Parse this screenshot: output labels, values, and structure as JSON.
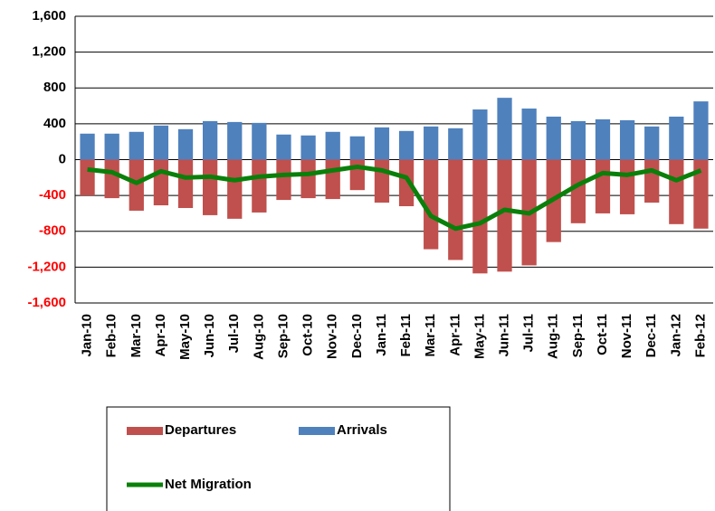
{
  "chart_data": {
    "type": "bar",
    "categories": [
      "Jan-10",
      "Feb-10",
      "Mar-10",
      "Apr-10",
      "May-10",
      "Jun-10",
      "Jul-10",
      "Aug-10",
      "Sep-10",
      "Oct-10",
      "Nov-10",
      "Dec-10",
      "Jan-11",
      "Feb-11",
      "Mar-11",
      "Apr-11",
      "May-11",
      "Jun-11",
      "Jul-11",
      "Aug-11",
      "Sep-11",
      "Oct-11",
      "Nov-11",
      "Dec-11",
      "Jan-12",
      "Feb-12"
    ],
    "series": [
      {
        "name": "Departures",
        "type": "bar",
        "color": "#c0504d",
        "values": [
          -400,
          -430,
          -570,
          -510,
          -540,
          -620,
          -660,
          -590,
          -450,
          -430,
          -440,
          -340,
          -480,
          -520,
          -1000,
          -1120,
          -1270,
          -1250,
          -1180,
          -920,
          -710,
          -600,
          -610,
          -480,
          -720,
          -770
        ]
      },
      {
        "name": "Arrivals",
        "type": "bar",
        "color": "#4f81bd",
        "values": [
          290,
          290,
          310,
          380,
          340,
          430,
          420,
          410,
          280,
          270,
          310,
          260,
          360,
          320,
          370,
          350,
          560,
          690,
          570,
          480,
          430,
          450,
          440,
          370,
          480,
          650
        ]
      },
      {
        "name": "Net Migration",
        "type": "line",
        "color": "#0a800a",
        "values": [
          -110,
          -140,
          -260,
          -130,
          -200,
          -190,
          -230,
          -190,
          -170,
          -160,
          -120,
          -80,
          -120,
          -200,
          -630,
          -770,
          -710,
          -560,
          -600,
          -440,
          -280,
          -150,
          -170,
          -120,
          -230,
          -120
        ]
      }
    ],
    "ylim": [
      -1600,
      1600
    ],
    "yticks": [
      {
        "value": -1600,
        "label": "-1,600"
      },
      {
        "value": -1200,
        "label": "-1,200"
      },
      -800,
      -400,
      0,
      400,
      800,
      {
        "value": 1200,
        "label": "1,200"
      },
      {
        "value": 1600,
        "label": "1,600"
      }
    ],
    "negative_tick_color": "#ff0000",
    "grid": true
  }
}
